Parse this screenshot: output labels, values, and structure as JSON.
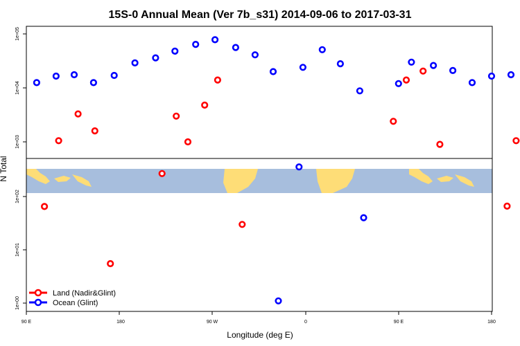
{
  "chart_data": {
    "type": "scatter",
    "title": "15S-0 Annual Mean (Ver 7b_s31)   2014-09-06 to 2017-03-31",
    "xlabel": "Longitude (deg E)",
    "ylabel": "N Total",
    "x_ticks": [
      "90 E",
      "180",
      "90 W",
      "0",
      "90 E",
      "180"
    ],
    "y_ticks_upper": [
      "1e+05",
      "1e+04",
      "1e+03"
    ],
    "y_ticks_lower": [
      "1e+02",
      "1e+01",
      "1e+00"
    ],
    "y_scale": "log",
    "legend_position": "bottom-left",
    "background_map": "equatorial land/ocean strip (15S-0)",
    "series": [
      {
        "name": "Land (Nadir&Glint)",
        "color": "#ff0000",
        "points": [
          {
            "panel": "upper",
            "x": 115,
            "y": 1050
          },
          {
            "panel": "upper",
            "x": 130,
            "y": 3300
          },
          {
            "panel": "upper",
            "x": 143,
            "y": 1600
          },
          {
            "panel": "upper",
            "x": 206,
            "y": 3000
          },
          {
            "panel": "upper",
            "x": 215,
            "y": 1000
          },
          {
            "panel": "upper",
            "x": 228,
            "y": 4800
          },
          {
            "panel": "upper",
            "x": 238,
            "y": 14000
          },
          {
            "panel": "upper",
            "x": 374,
            "y": 2400
          },
          {
            "panel": "upper",
            "x": 384,
            "y": 14000
          },
          {
            "panel": "upper",
            "x": 397,
            "y": 20500
          },
          {
            "panel": "upper",
            "x": 410,
            "y": 900
          },
          {
            "panel": "upper",
            "x": 469,
            "y": 1050
          },
          {
            "panel": "upper",
            "x": 489,
            "y": 3300
          },
          {
            "panel": "upper",
            "x": 501,
            "y": 1600
          },
          {
            "panel": "lower",
            "x": 104,
            "y": 65
          },
          {
            "panel": "lower",
            "x": 155,
            "y": 5.5
          },
          {
            "panel": "lower",
            "x": 195,
            "y": 270
          },
          {
            "panel": "lower",
            "x": 257,
            "y": 30
          },
          {
            "panel": "lower",
            "x": 462,
            "y": 66
          },
          {
            "panel": "lower",
            "x": 515,
            "y": 5.5
          }
        ]
      },
      {
        "name": "Ocean (Glint)",
        "color": "#0000ff",
        "points": [
          {
            "panel": "upper",
            "x": 98,
            "y": 12500
          },
          {
            "panel": "upper",
            "x": 113,
            "y": 16500
          },
          {
            "panel": "upper",
            "x": 127,
            "y": 17500
          },
          {
            "panel": "upper",
            "x": 142,
            "y": 12500
          },
          {
            "panel": "upper",
            "x": 158,
            "y": 17000
          },
          {
            "panel": "upper",
            "x": 174,
            "y": 29000
          },
          {
            "panel": "upper",
            "x": 190,
            "y": 36000
          },
          {
            "panel": "upper",
            "x": 205,
            "y": 48000
          },
          {
            "panel": "upper",
            "x": 221,
            "y": 64000
          },
          {
            "panel": "upper",
            "x": 236,
            "y": 78000
          },
          {
            "panel": "upper",
            "x": 252,
            "y": 56000
          },
          {
            "panel": "upper",
            "x": 267,
            "y": 41000
          },
          {
            "panel": "upper",
            "x": 281,
            "y": 20000
          },
          {
            "panel": "upper",
            "x": 304,
            "y": 24000
          },
          {
            "panel": "upper",
            "x": 319,
            "y": 51000
          },
          {
            "panel": "upper",
            "x": 333,
            "y": 28000
          },
          {
            "panel": "upper",
            "x": 348,
            "y": 8800
          },
          {
            "panel": "upper",
            "x": 378,
            "y": 12000
          },
          {
            "panel": "upper",
            "x": 388,
            "y": 30000
          },
          {
            "panel": "upper",
            "x": 405,
            "y": 26000
          },
          {
            "panel": "upper",
            "x": 420,
            "y": 21000
          },
          {
            "panel": "upper",
            "x": 435,
            "y": 12500
          },
          {
            "panel": "upper",
            "x": 450,
            "y": 16500
          },
          {
            "panel": "upper",
            "x": 465,
            "y": 17500
          },
          {
            "panel": "upper",
            "x": 480,
            "y": 12500
          },
          {
            "panel": "upper",
            "x": 495,
            "y": 17000
          },
          {
            "panel": "upper",
            "x": 510,
            "y": 29000
          },
          {
            "panel": "lower",
            "x": 285,
            "y": 1.1
          },
          {
            "panel": "lower",
            "x": 301,
            "y": 360
          },
          {
            "panel": "lower",
            "x": 351,
            "y": 40
          }
        ]
      }
    ]
  }
}
